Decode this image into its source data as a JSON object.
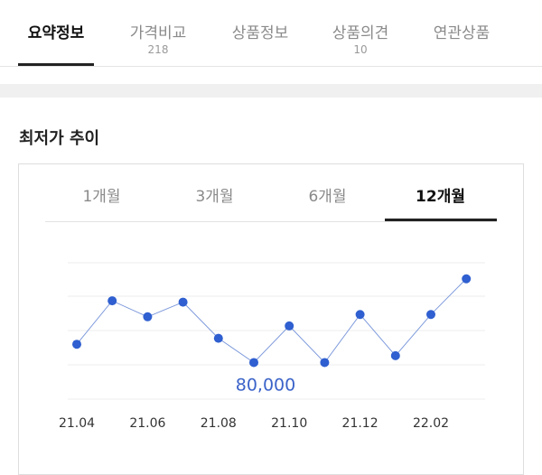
{
  "top_tabs": [
    {
      "label": "요약정보",
      "count": ""
    },
    {
      "label": "가격비교",
      "count": "218"
    },
    {
      "label": "상품정보",
      "count": ""
    },
    {
      "label": "상품의견",
      "count": "10"
    },
    {
      "label": "연관상품",
      "count": ""
    }
  ],
  "section_title": "최저가 추이",
  "period_tabs": [
    "1개월",
    "3개월",
    "6개월",
    "12개월"
  ],
  "active_period": "12개월",
  "chart_data": {
    "type": "line",
    "x_tick_labels": [
      "21.04",
      "21.06",
      "21.08",
      "21.10",
      "21.12",
      "22.02"
    ],
    "min_label": "80,000",
    "series": [
      {
        "values": [
          84000,
          93500,
          90000,
          93200,
          85300,
          80000,
          88000,
          80000,
          90500,
          81500,
          90500,
          98300
        ]
      }
    ],
    "colors": {
      "point": "#2f5fd0",
      "line": "#7f9bdc",
      "min_label": "#3b63c9"
    }
  }
}
